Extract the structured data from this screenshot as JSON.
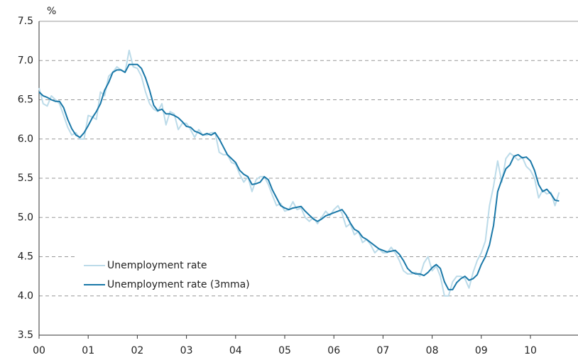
{
  "chart_data": {
    "type": "line",
    "y_label": "%",
    "categories": [
      "00",
      null,
      null,
      null,
      null,
      null,
      null,
      null,
      null,
      null,
      null,
      null,
      "01",
      null,
      null,
      null,
      null,
      null,
      null,
      null,
      null,
      null,
      null,
      null,
      "02",
      null,
      null,
      null,
      null,
      null,
      null,
      null,
      null,
      null,
      null,
      null,
      "03",
      null,
      null,
      null,
      null,
      null,
      null,
      null,
      null,
      null,
      null,
      null,
      "04",
      null,
      null,
      null,
      null,
      null,
      null,
      null,
      null,
      null,
      null,
      null,
      "05",
      null,
      null,
      null,
      null,
      null,
      null,
      null,
      null,
      null,
      null,
      null,
      "06",
      null,
      null,
      null,
      null,
      null,
      null,
      null,
      null,
      null,
      null,
      null,
      "07",
      null,
      null,
      null,
      null,
      null,
      null,
      null,
      null,
      null,
      null,
      null,
      "08",
      null,
      null,
      null,
      null,
      null,
      null,
      null,
      null,
      null,
      null,
      null,
      "09",
      null,
      null,
      null,
      null,
      null,
      null,
      null,
      null,
      null,
      null,
      null,
      "10",
      null,
      null,
      null,
      null,
      null,
      null,
      null
    ],
    "series": [
      {
        "name": "Unemployment rate",
        "color": "#bcdbe9",
        "values": [
          6.65,
          6.45,
          6.42,
          6.55,
          6.5,
          6.45,
          6.3,
          6.15,
          6.05,
          6.08,
          6.0,
          6.0,
          6.3,
          6.28,
          6.25,
          6.6,
          6.55,
          6.8,
          6.85,
          6.92,
          6.88,
          6.85,
          7.13,
          6.92,
          6.9,
          6.8,
          6.6,
          6.45,
          6.38,
          6.35,
          6.45,
          6.18,
          6.35,
          6.32,
          6.12,
          6.2,
          6.2,
          6.12,
          6.02,
          6.12,
          6.05,
          6.05,
          6.08,
          6.08,
          5.83,
          5.8,
          5.8,
          5.7,
          5.68,
          5.55,
          5.45,
          5.52,
          5.33,
          5.48,
          5.52,
          5.52,
          5.42,
          5.28,
          5.15,
          5.18,
          5.08,
          5.1,
          5.2,
          5.1,
          5.12,
          5.0,
          4.95,
          5.0,
          4.92,
          5.0,
          5.08,
          5.02,
          5.1,
          5.15,
          5.05,
          4.88,
          4.92,
          4.78,
          4.82,
          4.68,
          4.72,
          4.65,
          4.55,
          4.6,
          4.55,
          4.55,
          4.62,
          4.55,
          4.45,
          4.32,
          4.28,
          4.28,
          4.3,
          4.25,
          4.42,
          4.5,
          4.32,
          4.38,
          4.25,
          4.0,
          4.0,
          4.18,
          4.25,
          4.25,
          4.22,
          4.1,
          4.3,
          4.45,
          4.55,
          4.7,
          5.15,
          5.4,
          5.72,
          5.45,
          5.75,
          5.82,
          5.78,
          5.73,
          5.77,
          5.65,
          5.6,
          5.5,
          5.25,
          5.35,
          5.3,
          5.32,
          5.15,
          5.32
        ]
      },
      {
        "name": "Unemployment rate (3mma)",
        "color": "#1a78a8",
        "values": [
          6.6,
          6.55,
          6.53,
          6.5,
          6.48,
          6.48,
          6.4,
          6.25,
          6.13,
          6.05,
          6.02,
          6.08,
          6.17,
          6.27,
          6.35,
          6.45,
          6.62,
          6.72,
          6.85,
          6.88,
          6.88,
          6.85,
          6.95,
          6.95,
          6.95,
          6.9,
          6.78,
          6.62,
          6.43,
          6.36,
          6.38,
          6.32,
          6.32,
          6.3,
          6.27,
          6.22,
          6.16,
          6.15,
          6.1,
          6.08,
          6.05,
          6.07,
          6.05,
          6.08,
          6.0,
          5.9,
          5.8,
          5.75,
          5.7,
          5.6,
          5.55,
          5.52,
          5.42,
          5.43,
          5.45,
          5.52,
          5.48,
          5.35,
          5.25,
          5.15,
          5.12,
          5.1,
          5.12,
          5.13,
          5.14,
          5.08,
          5.03,
          4.98,
          4.95,
          4.98,
          5.02,
          5.04,
          5.06,
          5.08,
          5.1,
          5.03,
          4.93,
          4.85,
          4.82,
          4.75,
          4.72,
          4.68,
          4.64,
          4.6,
          4.58,
          4.56,
          4.57,
          4.58,
          4.53,
          4.45,
          4.35,
          4.3,
          4.28,
          4.28,
          4.26,
          4.3,
          4.36,
          4.4,
          4.35,
          4.18,
          4.08,
          4.08,
          4.17,
          4.22,
          4.25,
          4.2,
          4.22,
          4.27,
          4.4,
          4.5,
          4.65,
          4.9,
          5.33,
          5.48,
          5.62,
          5.67,
          5.78,
          5.8,
          5.76,
          5.77,
          5.72,
          5.6,
          5.42,
          5.33,
          5.36,
          5.3,
          5.22,
          5.21
        ]
      }
    ],
    "ylim": [
      3.5,
      7.5
    ],
    "yticks": [
      3.5,
      {
        "value": 4,
        "label": "4.0"
      },
      4.5,
      {
        "value": 5,
        "label": "5.0"
      },
      5.5,
      {
        "value": 6,
        "label": "6.0"
      },
      6.5,
      {
        "value": 7,
        "label": "7.0"
      },
      7.5
    ],
    "grid": true
  }
}
